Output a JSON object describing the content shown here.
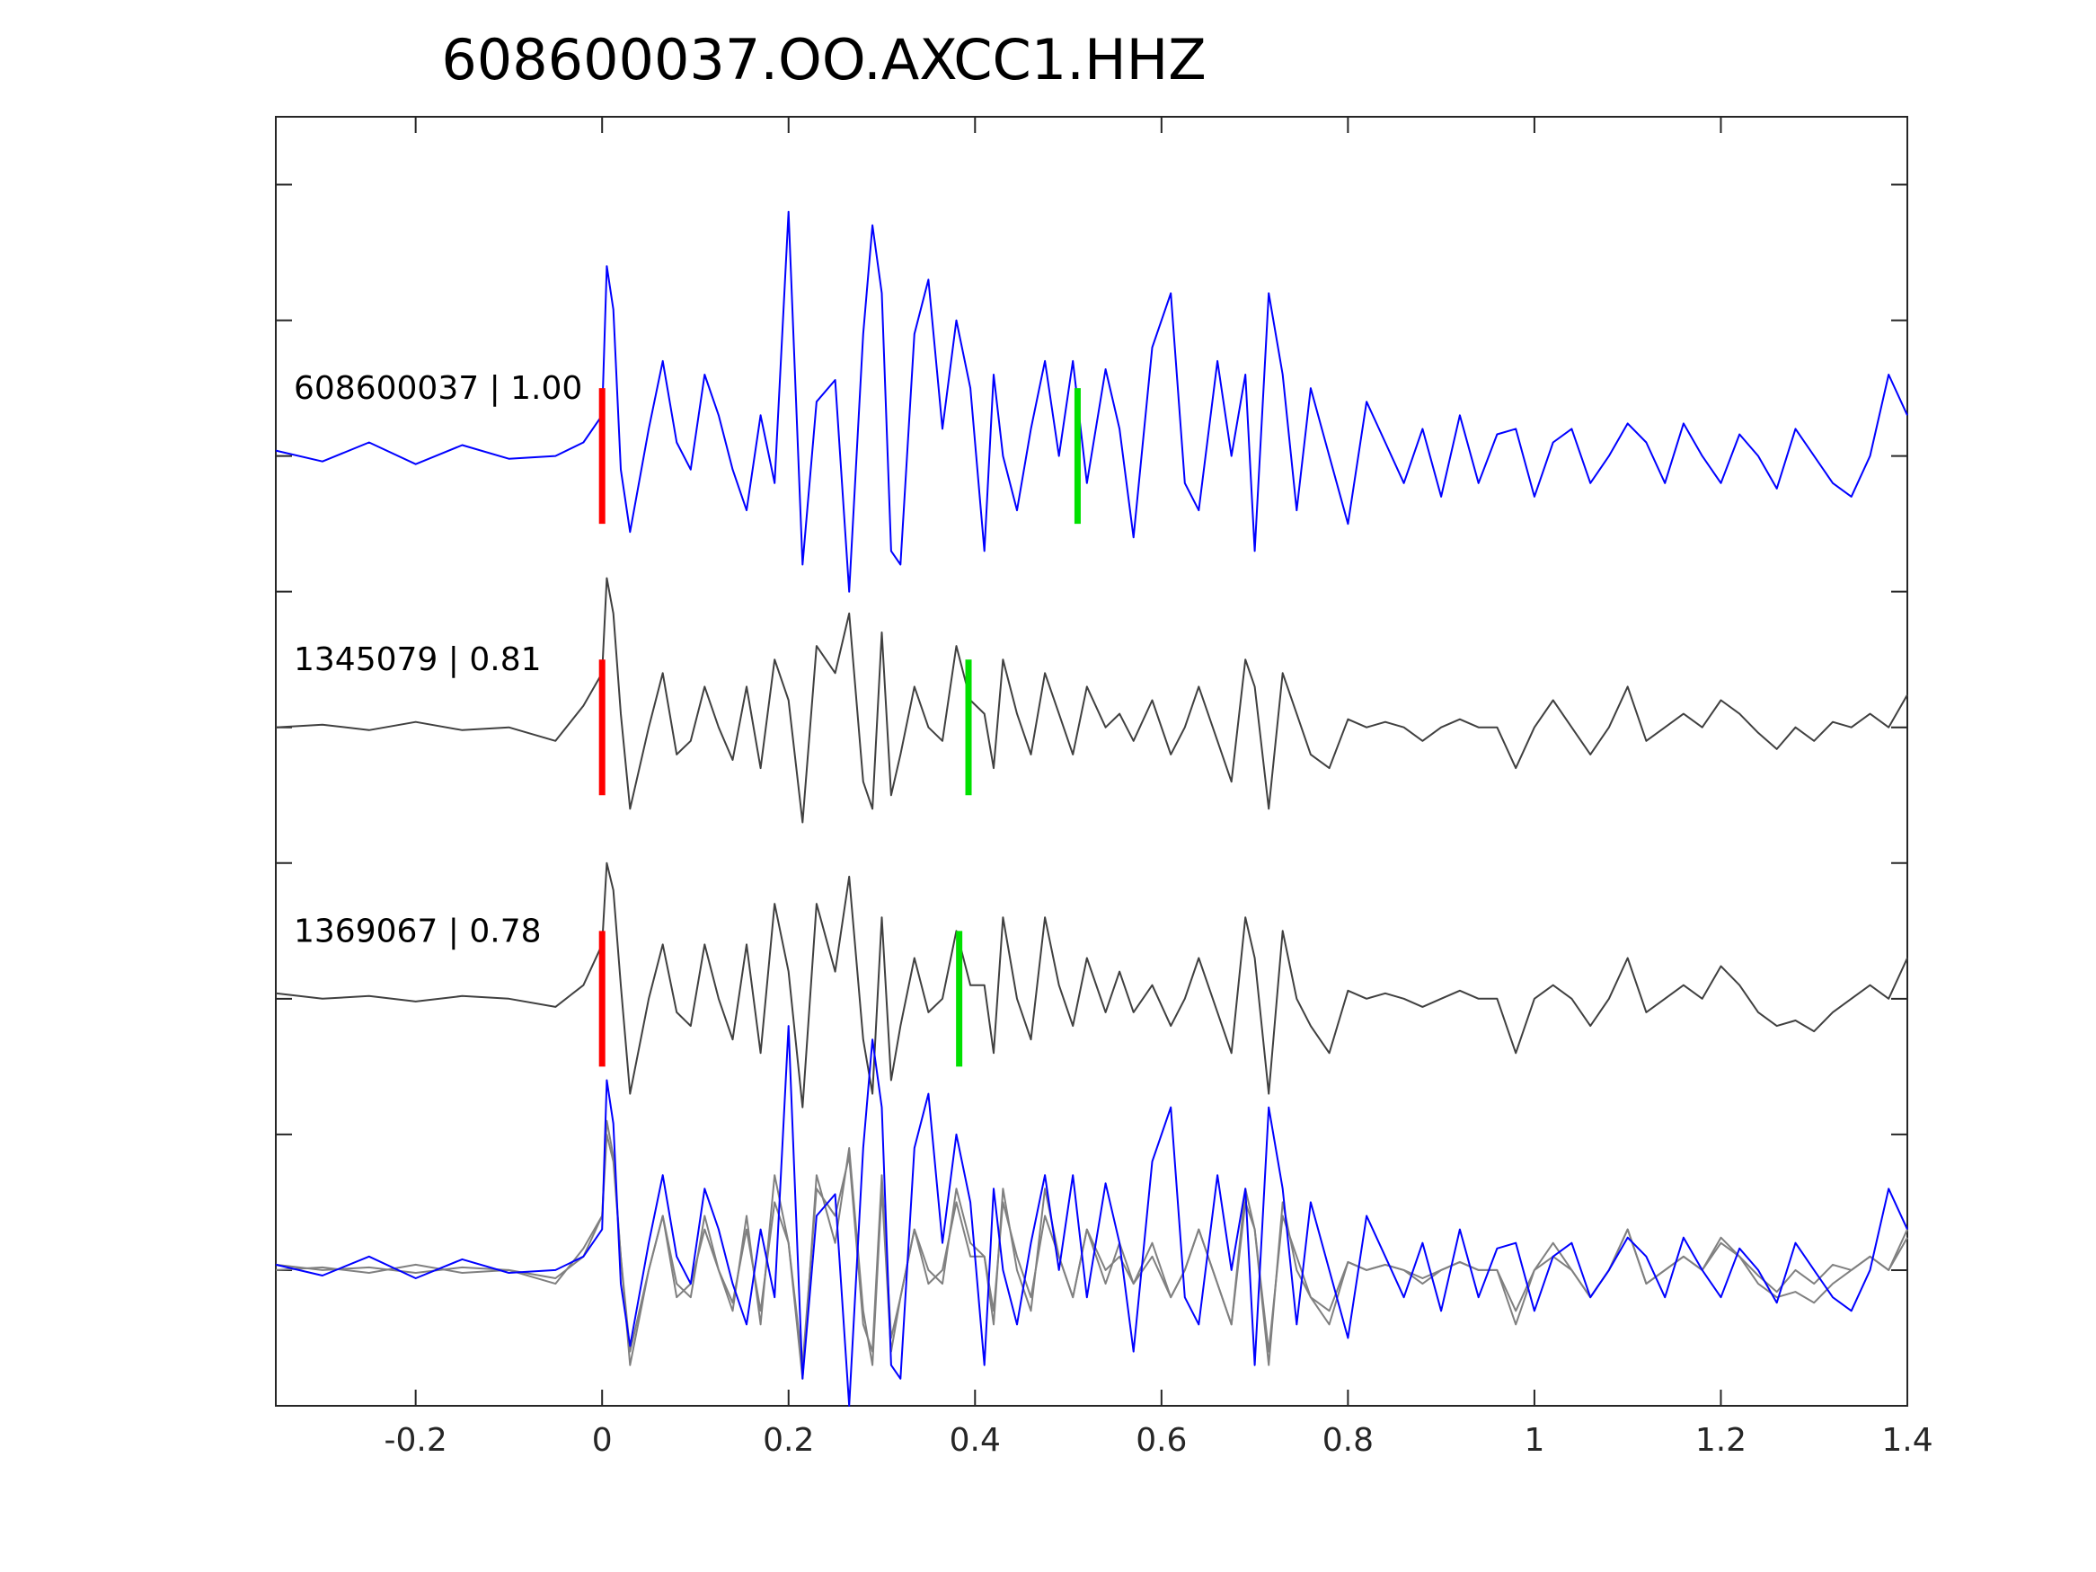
{
  "chart_data": {
    "type": "line",
    "title": "608600037.OO.AXCC1.HHZ",
    "xlabel": "",
    "ylabel": "",
    "xlim": [
      -0.35,
      1.4
    ],
    "ylim": [
      -0.5,
      4.25
    ],
    "grid": false,
    "x_ticks": [
      -0.2,
      0,
      0.2,
      0.4,
      0.6,
      0.8,
      1,
      1.2,
      1.4
    ],
    "x_tick_labels": [
      "-0.2",
      "0",
      "0.2",
      "0.4",
      "0.6",
      "0.8",
      "1",
      "1.2",
      "1.4"
    ],
    "y_ticks": [
      0,
      0.5,
      1,
      1.5,
      2,
      2.5,
      3,
      3.5,
      4
    ],
    "y_tick_labels": [
      "",
      "",
      "",
      "",
      "",
      "",
      "",
      "",
      ""
    ],
    "colors": {
      "reference": "#0000ff",
      "match": "#404040",
      "overlay_match": "#808080",
      "p_pick": "#ff0000",
      "s_pick": "#00e000",
      "axes": "#262626"
    },
    "traces": [
      {
        "label": "608600037 | 1.00",
        "offset": 3,
        "color": "#0000ff",
        "p_pick": 0,
        "s_pick": 0.51,
        "x": [
          -0.35,
          -0.3,
          -0.25,
          -0.2,
          -0.15,
          -0.1,
          -0.05,
          -0.02,
          0,
          0.005,
          0.012,
          0.02,
          0.03,
          0.05,
          0.065,
          0.08,
          0.095,
          0.11,
          0.125,
          0.14,
          0.155,
          0.17,
          0.185,
          0.2,
          0.215,
          0.23,
          0.25,
          0.265,
          0.28,
          0.29,
          0.3,
          0.31,
          0.32,
          0.335,
          0.35,
          0.365,
          0.38,
          0.395,
          0.41,
          0.42,
          0.43,
          0.445,
          0.46,
          0.475,
          0.49,
          0.505,
          0.52,
          0.54,
          0.555,
          0.57,
          0.59,
          0.61,
          0.625,
          0.64,
          0.66,
          0.675,
          0.69,
          0.7,
          0.715,
          0.73,
          0.745,
          0.76,
          0.78,
          0.8,
          0.82,
          0.84,
          0.86,
          0.88,
          0.9,
          0.92,
          0.94,
          0.96,
          0.98,
          1.0,
          1.02,
          1.04,
          1.06,
          1.08,
          1.1,
          1.12,
          1.14,
          1.16,
          1.18,
          1.2,
          1.22,
          1.24,
          1.26,
          1.28,
          1.3,
          1.32,
          1.34,
          1.36,
          1.38,
          1.4
        ],
        "y": [
          0.02,
          -0.02,
          0.05,
          -0.03,
          0.04,
          -0.01,
          0.0,
          0.05,
          0.15,
          0.7,
          0.54,
          -0.05,
          -0.28,
          0.1,
          0.35,
          0.05,
          -0.05,
          0.3,
          0.15,
          -0.05,
          -0.2,
          0.15,
          -0.1,
          0.9,
          -0.4,
          0.2,
          0.28,
          -0.5,
          0.45,
          0.85,
          0.6,
          -0.35,
          -0.4,
          0.45,
          0.65,
          0.1,
          0.5,
          0.25,
          -0.35,
          0.3,
          0.0,
          -0.2,
          0.1,
          0.35,
          0.0,
          0.35,
          -0.1,
          0.32,
          0.1,
          -0.3,
          0.4,
          0.6,
          -0.1,
          -0.2,
          0.35,
          0.0,
          0.3,
          -0.35,
          0.6,
          0.3,
          -0.2,
          0.25,
          0.0,
          -0.25,
          0.2,
          0.05,
          -0.1,
          0.1,
          -0.15,
          0.15,
          -0.1,
          0.08,
          0.1,
          -0.15,
          0.05,
          0.1,
          -0.1,
          0.0,
          0.12,
          0.05,
          -0.1,
          0.12,
          0.0,
          -0.1,
          0.08,
          0.0,
          -0.12,
          0.1,
          0.0,
          -0.1,
          -0.15,
          0.0,
          0.3,
          0.15
        ]
      },
      {
        "label": "1345079 | 0.81",
        "offset": 2,
        "color": "#404040",
        "p_pick": 0,
        "s_pick": 0.393,
        "x": [
          -0.35,
          -0.3,
          -0.25,
          -0.2,
          -0.15,
          -0.1,
          -0.05,
          -0.02,
          0,
          0.005,
          0.012,
          0.02,
          0.03,
          0.05,
          0.065,
          0.08,
          0.095,
          0.11,
          0.125,
          0.14,
          0.155,
          0.17,
          0.185,
          0.2,
          0.215,
          0.23,
          0.25,
          0.265,
          0.28,
          0.29,
          0.3,
          0.31,
          0.32,
          0.335,
          0.35,
          0.365,
          0.38,
          0.395,
          0.41,
          0.42,
          0.43,
          0.445,
          0.46,
          0.475,
          0.49,
          0.505,
          0.52,
          0.54,
          0.555,
          0.57,
          0.59,
          0.61,
          0.625,
          0.64,
          0.66,
          0.675,
          0.69,
          0.7,
          0.715,
          0.73,
          0.745,
          0.76,
          0.78,
          0.8,
          0.82,
          0.84,
          0.86,
          0.88,
          0.9,
          0.92,
          0.94,
          0.96,
          0.98,
          1.0,
          1.02,
          1.04,
          1.06,
          1.08,
          1.1,
          1.12,
          1.14,
          1.16,
          1.18,
          1.2,
          1.22,
          1.24,
          1.26,
          1.28,
          1.3,
          1.32,
          1.34,
          1.36,
          1.38,
          1.4
        ],
        "y": [
          0.0,
          0.01,
          -0.01,
          0.02,
          -0.01,
          0.0,
          -0.05,
          0.08,
          0.2,
          0.55,
          0.42,
          0.05,
          -0.3,
          0.0,
          0.2,
          -0.1,
          -0.05,
          0.15,
          0.0,
          -0.12,
          0.15,
          -0.15,
          0.25,
          0.1,
          -0.35,
          0.3,
          0.2,
          0.42,
          -0.2,
          -0.3,
          0.35,
          -0.25,
          -0.1,
          0.15,
          0.0,
          -0.05,
          0.3,
          0.1,
          0.05,
          -0.15,
          0.25,
          0.05,
          -0.1,
          0.2,
          0.05,
          -0.1,
          0.15,
          0.0,
          0.05,
          -0.05,
          0.1,
          -0.1,
          0.0,
          0.15,
          -0.05,
          -0.2,
          0.25,
          0.15,
          -0.3,
          0.2,
          0.05,
          -0.1,
          -0.15,
          0.03,
          0.0,
          0.02,
          0.0,
          -0.05,
          0.0,
          0.03,
          0.0,
          0.0,
          -0.15,
          0.0,
          0.1,
          0.0,
          -0.1,
          0.0,
          0.15,
          -0.05,
          0.0,
          0.05,
          0.0,
          0.1,
          0.05,
          -0.02,
          -0.08,
          0.0,
          -0.05,
          0.02,
          0.0,
          0.05,
          0.0,
          0.12
        ]
      },
      {
        "label": "1369067 | 0.78",
        "offset": 1,
        "color": "#404040",
        "p_pick": 0,
        "s_pick": 0.383,
        "x": [
          -0.35,
          -0.3,
          -0.25,
          -0.2,
          -0.15,
          -0.1,
          -0.05,
          -0.02,
          0,
          0.005,
          0.012,
          0.02,
          0.03,
          0.05,
          0.065,
          0.08,
          0.095,
          0.11,
          0.125,
          0.14,
          0.155,
          0.17,
          0.185,
          0.2,
          0.215,
          0.23,
          0.25,
          0.265,
          0.28,
          0.29,
          0.3,
          0.31,
          0.32,
          0.335,
          0.35,
          0.365,
          0.38,
          0.395,
          0.41,
          0.42,
          0.43,
          0.445,
          0.46,
          0.475,
          0.49,
          0.505,
          0.52,
          0.54,
          0.555,
          0.57,
          0.59,
          0.61,
          0.625,
          0.64,
          0.66,
          0.675,
          0.69,
          0.7,
          0.715,
          0.73,
          0.745,
          0.76,
          0.78,
          0.8,
          0.82,
          0.84,
          0.86,
          0.88,
          0.9,
          0.92,
          0.94,
          0.96,
          0.98,
          1.0,
          1.02,
          1.04,
          1.06,
          1.08,
          1.1,
          1.12,
          1.14,
          1.16,
          1.18,
          1.2,
          1.22,
          1.24,
          1.26,
          1.28,
          1.3,
          1.32,
          1.34,
          1.36,
          1.38,
          1.4
        ],
        "y": [
          0.02,
          0.0,
          0.01,
          -0.01,
          0.01,
          0.0,
          -0.03,
          0.05,
          0.2,
          0.5,
          0.4,
          0.05,
          -0.35,
          0.0,
          0.2,
          -0.05,
          -0.1,
          0.2,
          0.0,
          -0.15,
          0.2,
          -0.2,
          0.35,
          0.1,
          -0.4,
          0.35,
          0.1,
          0.45,
          -0.15,
          -0.35,
          0.3,
          -0.3,
          -0.1,
          0.15,
          -0.05,
          0.0,
          0.25,
          0.05,
          0.05,
          -0.2,
          0.3,
          0.0,
          -0.15,
          0.3,
          0.05,
          -0.1,
          0.15,
          -0.05,
          0.1,
          -0.05,
          0.05,
          -0.1,
          0.0,
          0.15,
          -0.05,
          -0.2,
          0.3,
          0.15,
          -0.35,
          0.25,
          0.0,
          -0.1,
          -0.2,
          0.03,
          0.0,
          0.02,
          0.0,
          -0.03,
          0.0,
          0.03,
          0.0,
          0.0,
          -0.2,
          0.0,
          0.05,
          0.0,
          -0.1,
          0.0,
          0.15,
          -0.05,
          0.0,
          0.05,
          0.0,
          0.12,
          0.05,
          -0.05,
          -0.1,
          -0.08,
          -0.12,
          -0.05,
          0.0,
          0.05,
          0.0,
          0.15
        ]
      }
    ],
    "overlay_offset": 0
  }
}
